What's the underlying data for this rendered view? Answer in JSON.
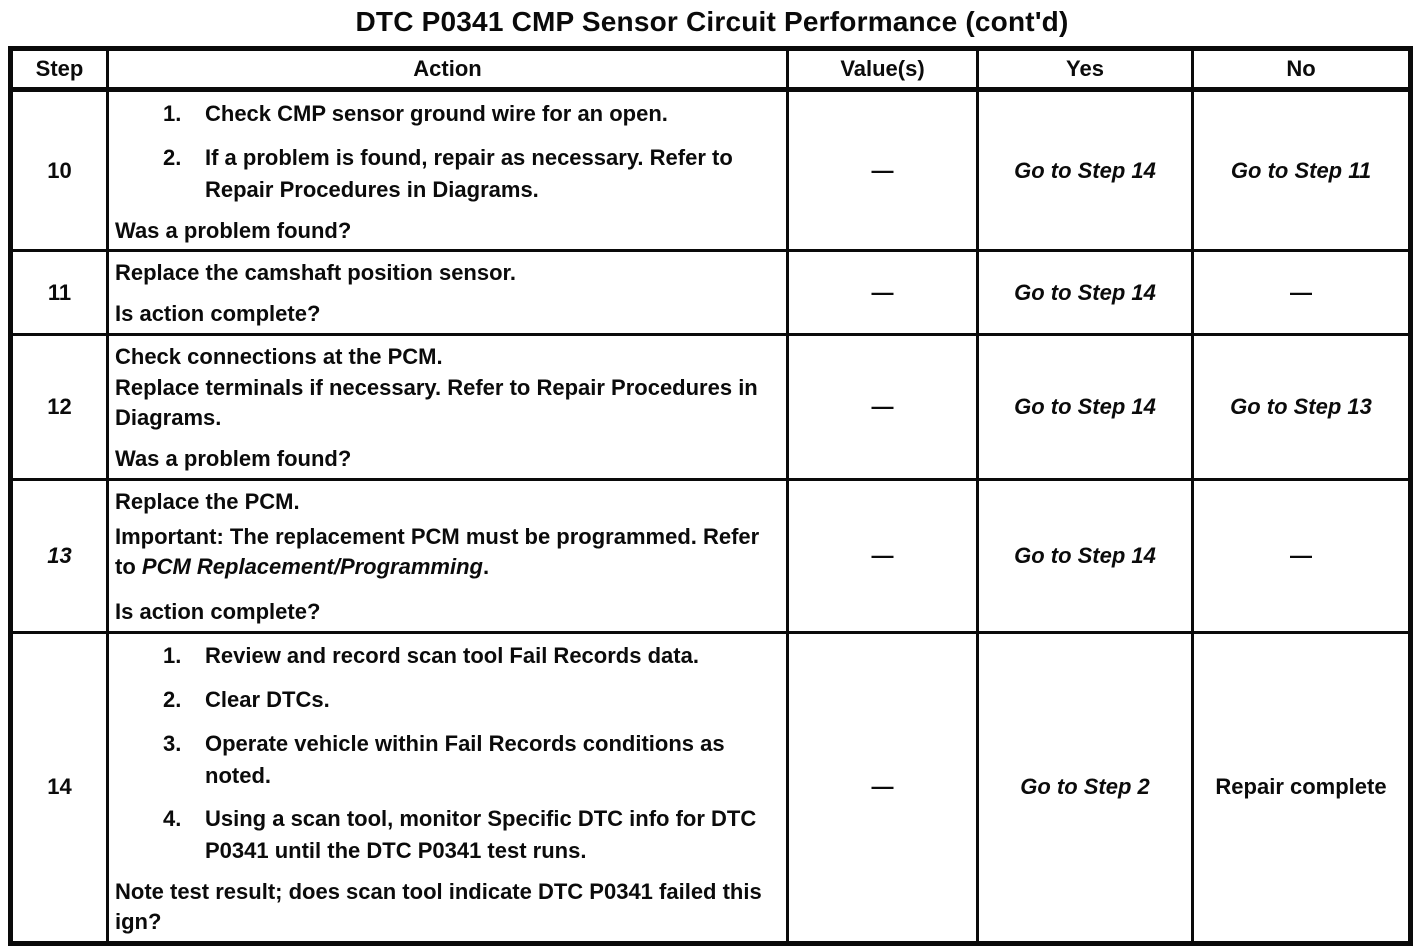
{
  "title": "DTC P0341 CMP Sensor Circuit Performance (cont'd)",
  "table": {
    "headers": {
      "step": "Step",
      "action": "Action",
      "values": "Value(s)",
      "yes": "Yes",
      "no": "No"
    },
    "rows": [
      {
        "step": "10",
        "list": [
          {
            "num": "1.",
            "text": "Check CMP sensor ground wire for an open."
          },
          {
            "num": "2.",
            "text": "If a problem is found, repair as necessary. Refer to Repair Procedures in Diagrams."
          }
        ],
        "question": "Was a problem found?",
        "value": "—",
        "yes": "Go to Step 14",
        "no": "Go to Step 11"
      },
      {
        "step": "11",
        "paragraphs": {
          "p1": "Replace the camshaft position sensor."
        },
        "question": "Is action complete?",
        "value": "—",
        "yes": "Go to Step 14",
        "no": "—"
      },
      {
        "step": "12",
        "paragraphs": {
          "p1": "Check connections at the PCM.",
          "p2": "Replace terminals if necessary. Refer to Repair Procedures in Diagrams."
        },
        "question": "Was a problem found?",
        "value": "—",
        "yes": "Go to Step 14",
        "no": "Go to Step 13"
      },
      {
        "step": "13",
        "paragraphs": {
          "p1": "Replace the PCM."
        },
        "important": {
          "label": "Important:",
          "text": " The replacement PCM must be programmed. Refer to ",
          "reference": "PCM Replacement/Programming",
          "suffix": "."
        },
        "question": "Is action complete?",
        "value": "—",
        "yes": "Go to Step 14",
        "no": "—"
      },
      {
        "step": "14",
        "list": [
          {
            "num": "1.",
            "text": "Review and record scan tool Fail Records data."
          },
          {
            "num": "2.",
            "text": "Clear DTCs."
          },
          {
            "num": "3.",
            "text": "Operate vehicle within Fail Records conditions as noted."
          },
          {
            "num": "4.",
            "text": "Using a scan tool, monitor Specific DTC info for DTC P0341 until the DTC P0341 test runs."
          }
        ],
        "question": "Note test result; does scan tool indicate DTC P0341 failed this ign?",
        "value": "—",
        "yes": "Go to Step 2",
        "no": "Repair complete"
      }
    ]
  }
}
